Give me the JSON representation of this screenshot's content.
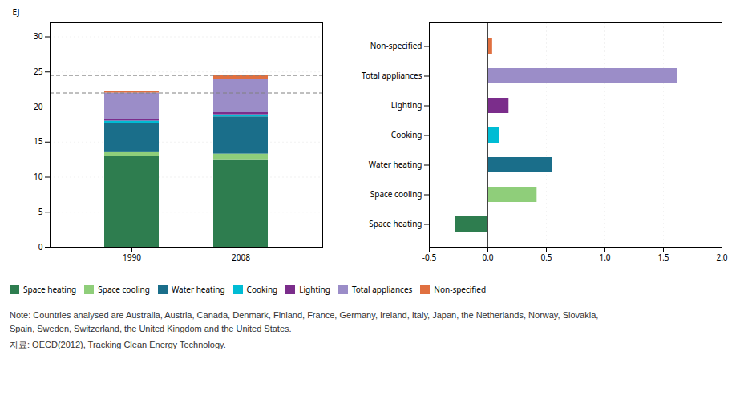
{
  "chart_data": [
    {
      "type": "bar",
      "stacked": true,
      "legend": "bottom",
      "grid": true,
      "categories": [
        "1990",
        "2008"
      ],
      "series": [
        {
          "name": "Space heating",
          "color": "#2e7d4f",
          "values": [
            13.0,
            12.5
          ]
        },
        {
          "name": "Space cooling",
          "color": "#8fce7a",
          "values": [
            0.5,
            0.8
          ]
        },
        {
          "name": "Water heating",
          "color": "#1a6e8a",
          "values": [
            4.2,
            5.3
          ]
        },
        {
          "name": "Cooking",
          "color": "#00bcd4",
          "values": [
            0.3,
            0.3
          ]
        },
        {
          "name": "Lighting",
          "color": "#7b2d8b",
          "values": [
            0.2,
            0.3
          ]
        },
        {
          "name": "Total appliances",
          "color": "#9b8dc8",
          "values": [
            3.8,
            4.8
          ]
        },
        {
          "name": "Non-specified",
          "color": "#e07040",
          "values": [
            0.2,
            0.5
          ]
        }
      ],
      "ylabel": "EJ",
      "ylim": [
        0,
        32
      ],
      "yticks": [
        0,
        5,
        10,
        15,
        20,
        25,
        30
      ],
      "dashed_lines": [
        22.0,
        24.5
      ]
    },
    {
      "type": "bar",
      "orientation": "horizontal",
      "grid": true,
      "categories": [
        "Non-specified",
        "Total appliances",
        "Lighting",
        "Cooking",
        "Water heating",
        "Space cooling",
        "Space heating"
      ],
      "values": [
        0.04,
        1.62,
        0.18,
        0.1,
        0.55,
        0.42,
        -0.28
      ],
      "colors": [
        "#e07040",
        "#9b8dc8",
        "#7b2d8b",
        "#00bcd4",
        "#1a6e8a",
        "#8fce7a",
        "#2e7d4f"
      ],
      "xlim": [
        -0.5,
        2.0
      ],
      "xticks": [
        -0.5,
        {
          "value": 0.0,
          "label": "0.0"
        },
        0.5,
        {
          "value": 1.0,
          "label": "1.0"
        },
        1.5,
        {
          "value": 2.0,
          "label": "2.0"
        }
      ]
    }
  ],
  "annotations": [
    "Note: Countries analysed are Australia, Austria, Canada, Denmark, Finland, France, Germany, Ireland, Italy, Japan, the Netherlands, Norway, Slovakia,\nSpain, Sweden, Switzerland, the United Kingdom and the United States.",
    "자료: OECD(2012),  Tracking Clean Energy Technology."
  ]
}
